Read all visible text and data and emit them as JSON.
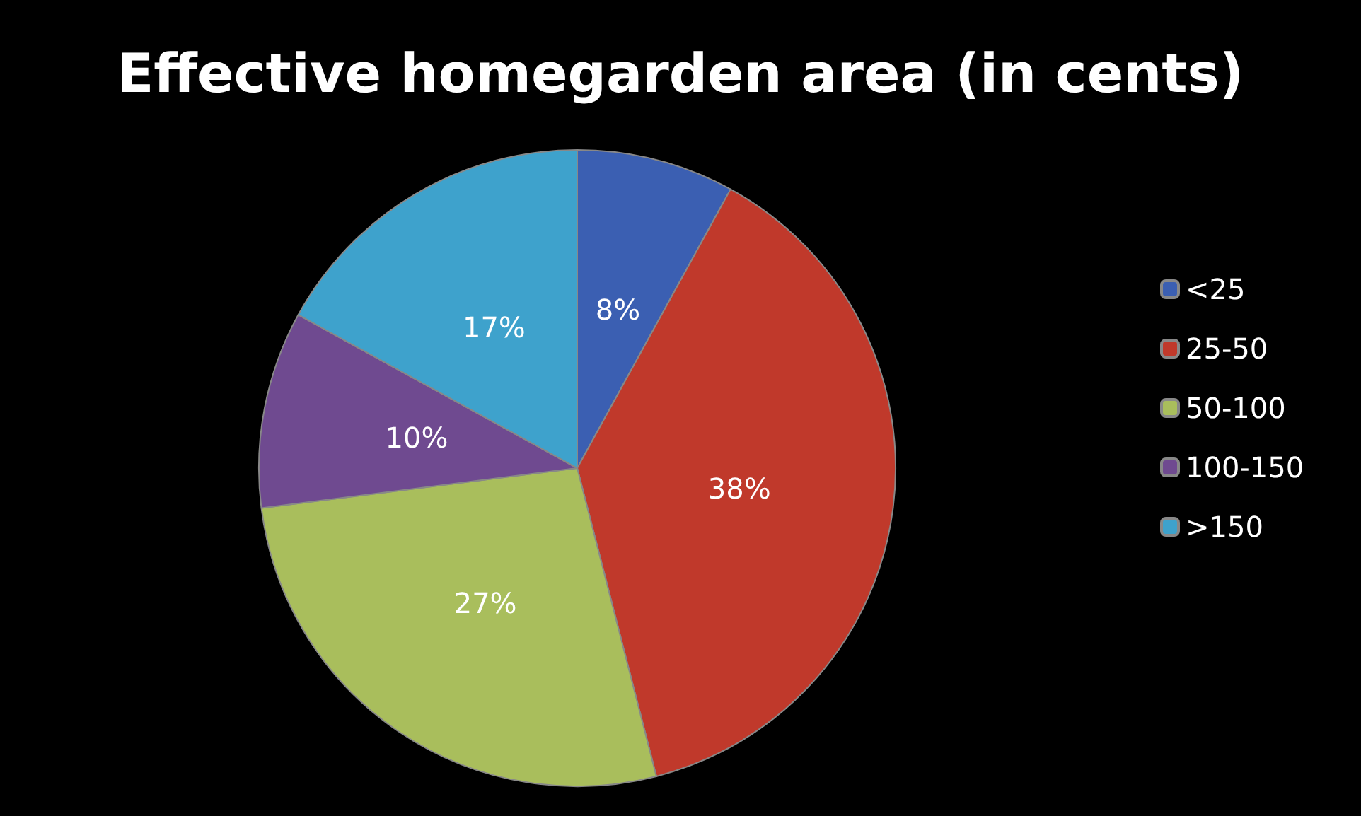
{
  "chart_data": {
    "type": "pie",
    "title": "Effective homegarden area (in cents)",
    "categories": [
      "<25",
      "25-50",
      "50-100",
      "100-150",
      ">150"
    ],
    "values": [
      8,
      38,
      27,
      10,
      17
    ],
    "value_labels": [
      "8%",
      "38%",
      "27%",
      "10%",
      "17%"
    ],
    "colors": [
      "#3b5fb2",
      "#c0392b",
      "#a9be5c",
      "#6f4a90",
      "#3ea2cc"
    ],
    "legend": "right"
  }
}
